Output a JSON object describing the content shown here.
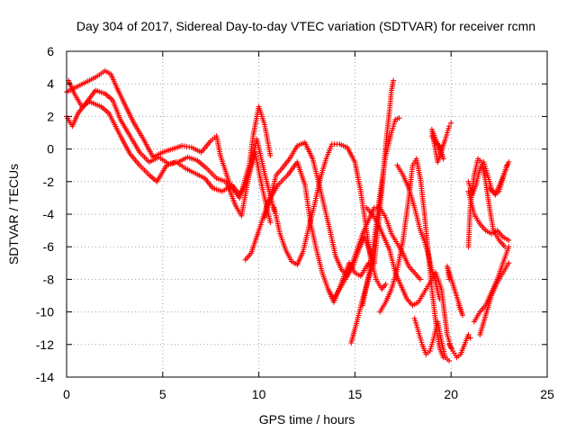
{
  "chart_data": {
    "type": "scatter",
    "title": "Day 304 of 2017, Sidereal Day-to-day VTEC variation (SDTVAR) for receiver rcmn",
    "xlabel": "GPS time / hours",
    "ylabel": "SDTVAR / TECUs",
    "xlim": [
      0,
      25
    ],
    "ylim": [
      -14,
      6
    ],
    "xticks": [
      "0",
      "5",
      "10",
      "15",
      "20",
      "25"
    ],
    "yticks": [
      "-14",
      "-12",
      "-10",
      "-8",
      "-6",
      "-4",
      "-2",
      "0",
      "2",
      "4",
      "6"
    ],
    "grid": true,
    "marker": "+",
    "color": "#ff0000",
    "series": [
      {
        "points": [
          [
            0.0,
            3.5
          ],
          [
            0.5,
            3.8
          ],
          [
            1.0,
            4.1
          ],
          [
            1.5,
            4.4
          ],
          [
            2.0,
            4.8
          ],
          [
            2.3,
            4.6
          ],
          [
            2.6,
            3.8
          ],
          [
            3.0,
            2.8
          ],
          [
            3.5,
            1.6
          ],
          [
            4.0,
            0.6
          ],
          [
            4.5,
            -0.5
          ],
          [
            5.0,
            -0.2
          ],
          [
            5.5,
            0.0
          ],
          [
            6.0,
            0.2
          ],
          [
            6.5,
            0.1
          ],
          [
            7.0,
            -0.2
          ],
          [
            7.5,
            0.5
          ],
          [
            7.8,
            0.8
          ],
          [
            8.0,
            -0.4
          ],
          [
            8.5,
            -2.2
          ],
          [
            9.0,
            -3.0
          ],
          [
            9.5,
            -1.0
          ],
          [
            9.7,
            0.8
          ],
          [
            10.0,
            2.6
          ],
          [
            10.3,
            1.5
          ],
          [
            10.6,
            -0.4
          ]
        ]
      },
      {
        "points": [
          [
            0.0,
            2.0
          ],
          [
            0.3,
            1.4
          ],
          [
            0.6,
            2.2
          ],
          [
            1.0,
            2.8
          ],
          [
            1.5,
            3.6
          ],
          [
            2.0,
            3.4
          ],
          [
            2.4,
            3.0
          ],
          [
            2.8,
            1.8
          ],
          [
            3.3,
            0.8
          ],
          [
            3.8,
            -0.2
          ],
          [
            4.3,
            -0.8
          ],
          [
            4.8,
            -0.5
          ],
          [
            5.3,
            -0.9
          ],
          [
            5.8,
            -0.8
          ],
          [
            6.3,
            -0.5
          ],
          [
            6.8,
            -0.7
          ],
          [
            7.3,
            -1.2
          ],
          [
            7.8,
            -1.8
          ],
          [
            8.3,
            -2.0
          ],
          [
            8.8,
            -3.5
          ],
          [
            9.1,
            -4.1
          ],
          [
            9.5,
            -1.5
          ],
          [
            9.9,
            0.6
          ],
          [
            10.3,
            -1.5
          ],
          [
            10.8,
            -3.8
          ]
        ]
      },
      {
        "points": [
          [
            0.1,
            4.2
          ],
          [
            0.4,
            3.4
          ],
          [
            0.8,
            2.6
          ],
          [
            1.2,
            2.9
          ],
          [
            1.8,
            2.6
          ],
          [
            2.2,
            2.2
          ],
          [
            2.8,
            0.8
          ],
          [
            3.3,
            -0.3
          ],
          [
            3.8,
            -1.0
          ],
          [
            4.3,
            -1.6
          ],
          [
            4.7,
            -2.0
          ],
          [
            5.2,
            -1.0
          ],
          [
            5.7,
            -0.8
          ],
          [
            6.2,
            -1.2
          ],
          [
            6.7,
            -1.5
          ],
          [
            7.2,
            -1.8
          ],
          [
            7.6,
            -2.4
          ],
          [
            8.1,
            -2.6
          ],
          [
            8.6,
            -2.2
          ],
          [
            9.0,
            -2.8
          ],
          [
            9.4,
            -2.0
          ],
          [
            9.8,
            -0.2
          ],
          [
            10.2,
            -2.5
          ],
          [
            10.6,
            -4.5
          ]
        ]
      },
      {
        "points": [
          [
            9.3,
            -6.8
          ],
          [
            9.6,
            -6.4
          ],
          [
            10.0,
            -5.0
          ],
          [
            10.5,
            -3.2
          ],
          [
            11.0,
            -2.2
          ],
          [
            11.5,
            -1.6
          ],
          [
            12.0,
            -0.8
          ],
          [
            12.4,
            -2.2
          ],
          [
            12.7,
            -4.6
          ],
          [
            13.0,
            -6.2
          ],
          [
            13.3,
            -7.6
          ],
          [
            13.6,
            -8.6
          ],
          [
            13.9,
            -9.4
          ],
          [
            14.3,
            -8.2
          ],
          [
            14.7,
            -7.0
          ],
          [
            15.0,
            -7.6
          ],
          [
            15.3,
            -7.8
          ],
          [
            15.7,
            -7.0
          ]
        ]
      },
      {
        "points": [
          [
            10.3,
            -4.2
          ],
          [
            10.6,
            -3.0
          ],
          [
            10.9,
            -1.6
          ],
          [
            11.2,
            -1.2
          ],
          [
            11.6,
            -0.6
          ],
          [
            12.0,
            0.2
          ],
          [
            12.4,
            0.4
          ],
          [
            12.8,
            -0.6
          ],
          [
            13.1,
            -2.0
          ],
          [
            13.4,
            -3.5
          ],
          [
            13.7,
            -5.0
          ],
          [
            14.0,
            -6.6
          ],
          [
            14.3,
            -7.4
          ],
          [
            14.6,
            -7.8
          ],
          [
            14.9,
            -7.2
          ],
          [
            15.2,
            -6.2
          ],
          [
            15.5,
            -5.4
          ],
          [
            15.8,
            -6.4
          ],
          [
            16.0,
            -7.0
          ]
        ]
      },
      {
        "points": [
          [
            10.8,
            -3.6
          ],
          [
            11.1,
            -5.2
          ],
          [
            11.4,
            -6.2
          ],
          [
            11.7,
            -6.9
          ],
          [
            12.0,
            -7.1
          ],
          [
            12.3,
            -6.3
          ],
          [
            12.6,
            -4.8
          ],
          [
            12.9,
            -3.4
          ],
          [
            13.2,
            -1.8
          ],
          [
            13.5,
            -0.6
          ],
          [
            13.8,
            0.3
          ],
          [
            14.2,
            0.3
          ],
          [
            14.6,
            0.1
          ],
          [
            15.0,
            -0.8
          ],
          [
            15.3,
            -2.6
          ],
          [
            15.6,
            -5.0
          ],
          [
            15.8,
            -6.6
          ],
          [
            16.1,
            -8.0
          ],
          [
            16.4,
            -8.6
          ],
          [
            16.6,
            -8.3
          ]
        ]
      },
      {
        "points": [
          [
            13.6,
            -8.6
          ],
          [
            13.9,
            -9.2
          ],
          [
            14.2,
            -8.6
          ],
          [
            14.5,
            -8.0
          ],
          [
            14.8,
            -7.2
          ],
          [
            15.1,
            -6.2
          ],
          [
            15.4,
            -5.2
          ],
          [
            15.7,
            -4.4
          ],
          [
            16.0,
            -3.6
          ],
          [
            16.3,
            -3.6
          ],
          [
            16.6,
            -4.2
          ],
          [
            16.9,
            -5.2
          ],
          [
            17.2,
            -5.8
          ],
          [
            17.5,
            -6.4
          ],
          [
            17.8,
            -7.2
          ],
          [
            18.1,
            -7.6
          ],
          [
            18.4,
            -8.0
          ]
        ]
      },
      {
        "points": [
          [
            14.8,
            -11.9
          ],
          [
            15.1,
            -10.6
          ],
          [
            15.4,
            -9.2
          ],
          [
            15.7,
            -8.0
          ],
          [
            16.0,
            -7.0
          ],
          [
            16.2,
            -4.8
          ],
          [
            16.4,
            -2.5
          ],
          [
            16.6,
            0.2
          ],
          [
            16.8,
            2.4
          ],
          [
            16.9,
            3.6
          ],
          [
            17.0,
            4.2
          ]
        ]
      },
      {
        "points": [
          [
            15.4,
            -9.6
          ],
          [
            15.7,
            -7.8
          ],
          [
            16.0,
            -5.6
          ],
          [
            16.3,
            -2.8
          ],
          [
            16.6,
            -0.4
          ],
          [
            16.9,
            1.0
          ],
          [
            17.1,
            1.8
          ],
          [
            17.3,
            1.9
          ]
        ]
      },
      {
        "points": [
          [
            15.6,
            -3.6
          ],
          [
            15.9,
            -4.0
          ],
          [
            16.2,
            -4.6
          ],
          [
            16.5,
            -5.4
          ],
          [
            16.8,
            -6.2
          ],
          [
            17.1,
            -7.6
          ],
          [
            17.4,
            -8.4
          ],
          [
            17.7,
            -9.2
          ],
          [
            18.0,
            -9.6
          ],
          [
            18.3,
            -9.4
          ],
          [
            18.6,
            -8.8
          ],
          [
            18.9,
            -8.2
          ],
          [
            19.2,
            -7.6
          ],
          [
            19.5,
            -8.6
          ],
          [
            19.8,
            -11.4
          ],
          [
            20.0,
            -12.2
          ]
        ]
      },
      {
        "points": [
          [
            16.3,
            -10.0
          ],
          [
            16.6,
            -9.4
          ],
          [
            16.9,
            -8.6
          ],
          [
            17.2,
            -7.4
          ],
          [
            17.5,
            -5.6
          ],
          [
            17.8,
            -3.0
          ],
          [
            18.0,
            -1.0
          ],
          [
            18.2,
            -0.6
          ],
          [
            18.4,
            -1.8
          ],
          [
            18.6,
            -3.8
          ],
          [
            18.8,
            -6.2
          ],
          [
            19.0,
            -8.6
          ],
          [
            19.2,
            -10.6
          ],
          [
            19.4,
            -12.2
          ],
          [
            19.6,
            -12.8
          ]
        ]
      },
      {
        "points": [
          [
            17.2,
            -1.0
          ],
          [
            17.5,
            -1.6
          ],
          [
            17.8,
            -2.4
          ],
          [
            18.1,
            -3.6
          ],
          [
            18.4,
            -5.0
          ],
          [
            18.6,
            -5.6
          ],
          [
            18.8,
            -6.4
          ],
          [
            19.0,
            -7.4
          ],
          [
            19.2,
            -8.2
          ],
          [
            19.4,
            -9.2
          ]
        ]
      },
      {
        "points": [
          [
            18.1,
            -10.4
          ],
          [
            18.3,
            -11.2
          ],
          [
            18.5,
            -12.0
          ],
          [
            18.7,
            -12.6
          ],
          [
            18.9,
            -12.4
          ],
          [
            19.1,
            -11.6
          ],
          [
            19.3,
            -10.6
          ],
          [
            19.5,
            -11.8
          ],
          [
            19.7,
            -12.8
          ],
          [
            19.9,
            -13.0
          ]
        ]
      },
      {
        "points": [
          [
            19.0,
            0.8
          ],
          [
            19.2,
            0.4
          ],
          [
            19.4,
            0.2
          ],
          [
            19.6,
            -0.6
          ],
          [
            19.0,
            1.2
          ],
          [
            19.3,
            -0.8
          ],
          [
            19.7,
            0.6
          ],
          [
            19.9,
            1.4
          ],
          [
            20.0,
            1.6
          ]
        ]
      },
      {
        "points": [
          [
            19.9,
            -12.0
          ],
          [
            20.1,
            -12.4
          ],
          [
            20.3,
            -12.8
          ],
          [
            20.5,
            -12.6
          ],
          [
            20.7,
            -12.0
          ],
          [
            20.9,
            -11.4
          ],
          [
            21.0,
            -11.6
          ]
        ]
      },
      {
        "points": [
          [
            20.4,
            -9.6
          ],
          [
            20.6,
            -10.2
          ],
          [
            19.8,
            -7.2
          ],
          [
            19.9,
            -8.0
          ]
        ]
      },
      {
        "points": [
          [
            20.9,
            -2.0
          ],
          [
            21.1,
            -2.8
          ],
          [
            21.3,
            -2.2
          ],
          [
            21.5,
            -1.2
          ],
          [
            21.7,
            -0.8
          ],
          [
            21.9,
            -1.6
          ],
          [
            22.1,
            -2.4
          ],
          [
            22.3,
            -2.8
          ],
          [
            22.5,
            -2.6
          ],
          [
            22.7,
            -1.8
          ],
          [
            22.9,
            -1.0
          ]
        ]
      },
      {
        "points": [
          [
            20.9,
            -2.6
          ],
          [
            21.2,
            -4.0
          ],
          [
            21.5,
            -4.6
          ],
          [
            21.8,
            -5.0
          ],
          [
            22.1,
            -5.2
          ],
          [
            22.4,
            -5.0
          ],
          [
            22.7,
            -5.4
          ],
          [
            23.0,
            -5.6
          ]
        ]
      },
      {
        "points": [
          [
            20.9,
            -6.0
          ],
          [
            21.0,
            -3.6
          ],
          [
            21.2,
            -1.6
          ],
          [
            21.4,
            -0.6
          ],
          [
            21.6,
            -0.8
          ],
          [
            21.8,
            -2.0
          ],
          [
            22.0,
            -3.6
          ],
          [
            22.2,
            -5.0
          ],
          [
            22.5,
            -5.6
          ],
          [
            22.8,
            -6.0
          ]
        ]
      },
      {
        "points": [
          [
            21.2,
            -10.6
          ],
          [
            21.5,
            -10.0
          ],
          [
            21.8,
            -9.6
          ],
          [
            22.1,
            -8.8
          ],
          [
            22.4,
            -8.0
          ],
          [
            22.7,
            -7.0
          ],
          [
            23.0,
            -6.0
          ]
        ]
      },
      {
        "points": [
          [
            21.5,
            -11.4
          ],
          [
            21.8,
            -10.2
          ],
          [
            22.1,
            -9.0
          ],
          [
            22.4,
            -8.2
          ],
          [
            22.7,
            -7.6
          ],
          [
            23.0,
            -7.0
          ]
        ]
      },
      {
        "points": [
          [
            22.0,
            -2.4
          ],
          [
            22.3,
            -2.8
          ],
          [
            22.6,
            -2.0
          ],
          [
            22.8,
            -1.4
          ],
          [
            23.0,
            -0.8
          ]
        ]
      }
    ]
  }
}
